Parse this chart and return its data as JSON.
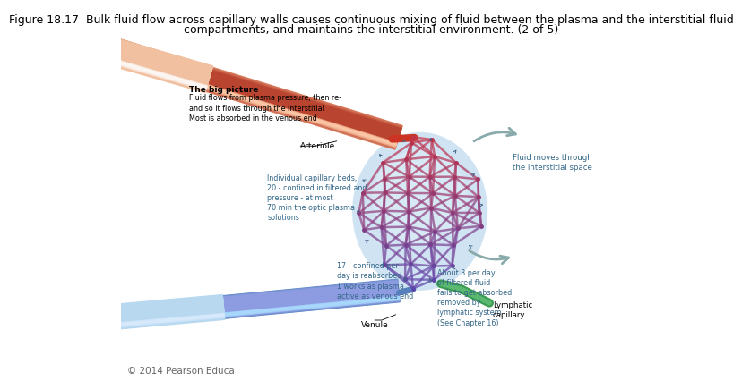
{
  "title_line1": "Figure 18.17  Bulk fluid flow across capillary walls causes continuous mixing of fluid between the plasma and the interstitial fluid",
  "title_line2": "compartments, and maintains the interstitial environment. (2 of 5)",
  "footer": "© 2014 Pearson Educa",
  "bg_color": "#ffffff",
  "title_fontsize": 9.0,
  "footer_fontsize": 7.5,
  "arrow_color": "#8ab8b8",
  "capillary_bg_color": "#c8dff0"
}
